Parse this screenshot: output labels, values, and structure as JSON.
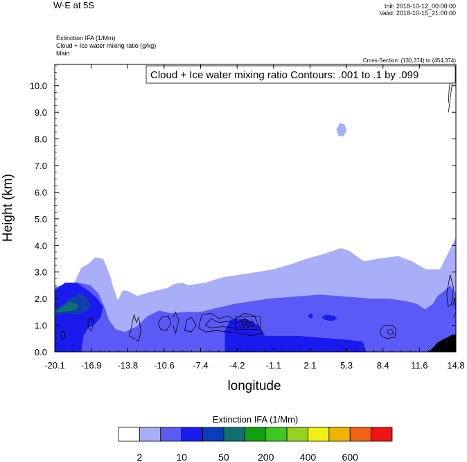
{
  "header": {
    "title": "W-E at 5S",
    "init": "Init: 2018-10-12_00:00:00",
    "valid": "Valid: 2018-10-15_21:00:00",
    "field_lines": [
      "Extinction IFA   (1/Mm)",
      "Cloud + Ice water mixing ratio   (g/kg)",
      "Main"
    ],
    "cross_section": "Cross-Section: (130,374) to (454,374)"
  },
  "contour_label_box": "Cloud + Ice water mixing ratio Contours: .001 to .1 by .099",
  "contour_value_label": ".001",
  "colors": {
    "shade_2": "#a8aef8",
    "shade_10": "#5a5af6",
    "shade_50": "#1a1aee",
    "shade_100": "#1040b0",
    "shade_200": "#107070",
    "terrain": "#000000"
  },
  "chart_data": {
    "type": "heatmap",
    "title": "W-E at 5S",
    "xlabel": "longitude",
    "ylabel": "Height (km)",
    "x_ticks": [
      "-20.1",
      "-16.9",
      "-13.8",
      "-10.6",
      "-7.4",
      "-4.2",
      "-1.1",
      "2.1",
      "5.3",
      "8.4",
      "11.6",
      "14.8"
    ],
    "y_ticks": [
      "0.0",
      "1.0",
      "2.0",
      "3.0",
      "4.0",
      "5.0",
      "6.0",
      "7.0",
      "8.0",
      "9.0",
      "10.0"
    ],
    "xlim": [
      -20.1,
      14.8
    ],
    "ylim": [
      0.0,
      10.8
    ],
    "colorbar": {
      "title": "Extinction IFA  (1/Mm)",
      "labels": [
        "2",
        "10",
        "50",
        "200",
        "400",
        "600"
      ],
      "colors": [
        "#ffffff",
        "#a8aef8",
        "#5a5af6",
        "#1a1aee",
        "#0c3cbc",
        "#107070",
        "#10a010",
        "#3cc81e",
        "#96d21e",
        "#f0f014",
        "#f0b400",
        "#f06414",
        "#f01414"
      ]
    },
    "regions": [
      {
        "name": "shade_2",
        "pts": [
          [
            -20.1,
            0
          ],
          [
            14.8,
            0
          ],
          [
            14.8,
            4.3
          ],
          [
            14.0,
            3.6
          ],
          [
            13.4,
            3.1
          ],
          [
            12.2,
            3.1
          ],
          [
            11.0,
            3.4
          ],
          [
            9.8,
            3.6
          ],
          [
            8.0,
            3.5
          ],
          [
            6.8,
            3.4
          ],
          [
            5.5,
            3.8
          ],
          [
            4.8,
            3.9
          ],
          [
            3.5,
            3.7
          ],
          [
            1.8,
            3.5
          ],
          [
            0.5,
            3.3
          ],
          [
            -1.1,
            3.1
          ],
          [
            -2.5,
            3.0
          ],
          [
            -4.0,
            2.9
          ],
          [
            -5.5,
            2.8
          ],
          [
            -7.0,
            2.6
          ],
          [
            -8.5,
            2.5
          ],
          [
            -9.0,
            2.6
          ],
          [
            -9.7,
            2.55
          ],
          [
            -10.3,
            2.4
          ],
          [
            -11.3,
            2.3
          ],
          [
            -12.2,
            2.2
          ],
          [
            -12.9,
            2.1
          ],
          [
            -13.8,
            2.3
          ],
          [
            -14.2,
            2.3
          ],
          [
            -14.6,
            1.95
          ],
          [
            -15.0,
            2.4
          ],
          [
            -15.3,
            2.9
          ],
          [
            -15.9,
            3.5
          ],
          [
            -16.6,
            3.55
          ],
          [
            -17.2,
            3.3
          ],
          [
            -17.8,
            3.15
          ],
          [
            -18.5,
            2.5
          ],
          [
            -19.5,
            2.4
          ],
          [
            -20.1,
            2.5
          ]
        ]
      },
      {
        "name": "shade_2",
        "pts": [
          [
            4.4,
            8.35
          ],
          [
            4.7,
            8.6
          ],
          [
            5.1,
            8.55
          ],
          [
            5.3,
            8.3
          ],
          [
            5.0,
            8.1
          ],
          [
            4.6,
            8.1
          ]
        ]
      },
      {
        "name": "shade_10",
        "pts": [
          [
            -20.1,
            0
          ],
          [
            14.8,
            0
          ],
          [
            14.8,
            2.2
          ],
          [
            14.3,
            2.5
          ],
          [
            13.8,
            2.3
          ],
          [
            13.2,
            2.1
          ],
          [
            12.8,
            1.8
          ],
          [
            12.1,
            1.6
          ],
          [
            11.4,
            1.8
          ],
          [
            10.5,
            1.9
          ],
          [
            9.0,
            2.0
          ],
          [
            7.5,
            2.0
          ],
          [
            6.0,
            2.05
          ],
          [
            4.5,
            2.1
          ],
          [
            3.0,
            2.15
          ],
          [
            1.5,
            2.1
          ],
          [
            0.0,
            2.05
          ],
          [
            -1.5,
            2.0
          ],
          [
            -3.0,
            1.9
          ],
          [
            -4.5,
            1.8
          ],
          [
            -6.0,
            1.65
          ],
          [
            -7.4,
            1.5
          ],
          [
            -8.8,
            1.5
          ],
          [
            -10.0,
            1.45
          ],
          [
            -11.0,
            1.55
          ],
          [
            -12.0,
            1.35
          ],
          [
            -13.0,
            0.95
          ],
          [
            -14.0,
            0.75
          ],
          [
            -14.8,
            0.85
          ],
          [
            -15.4,
            1.2
          ],
          [
            -15.7,
            1.6
          ],
          [
            -16.3,
            2.2
          ],
          [
            -17.0,
            2.5
          ],
          [
            -18.0,
            2.6
          ],
          [
            -19.0,
            2.6
          ],
          [
            -20.1,
            2.4
          ]
        ]
      },
      {
        "name": "shade_50",
        "pts": [
          [
            -20.1,
            0
          ],
          [
            -17.8,
            0
          ],
          [
            -17.6,
            0.6
          ],
          [
            -17.2,
            0.9
          ],
          [
            -16.6,
            1.05
          ],
          [
            -16.1,
            1.3
          ],
          [
            -15.9,
            1.7
          ],
          [
            -16.4,
            2.0
          ],
          [
            -17.2,
            2.3
          ],
          [
            -18.2,
            2.6
          ],
          [
            -19.2,
            2.6
          ],
          [
            -20.1,
            2.3
          ]
        ]
      },
      {
        "name": "shade_50",
        "pts": [
          [
            -5.3,
            0
          ],
          [
            -5.3,
            0.8
          ],
          [
            -4.8,
            1.2
          ],
          [
            -3.5,
            1.25
          ],
          [
            -2.4,
            1.0
          ],
          [
            -2.0,
            0.75
          ],
          [
            -1.8,
            0.6
          ],
          [
            -0.5,
            0.6
          ],
          [
            1.0,
            0.6
          ],
          [
            2.5,
            0.55
          ],
          [
            4.0,
            0.5
          ],
          [
            5.5,
            0.45
          ],
          [
            6.7,
            0.38
          ],
          [
            7.0,
            0
          ]
        ]
      },
      {
        "name": "shade_50",
        "pts": [
          [
            1.9,
            1.35
          ],
          [
            2.2,
            1.45
          ],
          [
            2.4,
            1.35
          ],
          [
            2.2,
            1.25
          ]
        ]
      },
      {
        "name": "shade_50",
        "pts": [
          [
            3.1,
            1.3
          ],
          [
            3.5,
            1.4
          ],
          [
            4.2,
            1.35
          ],
          [
            4.5,
            1.25
          ],
          [
            4.0,
            1.15
          ],
          [
            3.4,
            1.2
          ]
        ]
      },
      {
        "name": "shade_100",
        "pts": [
          [
            -20.1,
            1.55
          ],
          [
            -19.5,
            1.75
          ],
          [
            -18.6,
            2.05
          ],
          [
            -17.8,
            2.2
          ],
          [
            -17.2,
            2.0
          ],
          [
            -17.0,
            1.7
          ],
          [
            -17.4,
            1.5
          ],
          [
            -18.2,
            1.4
          ],
          [
            -19.2,
            1.45
          ],
          [
            -20.1,
            1.4
          ]
        ]
      },
      {
        "name": "shade_200",
        "pts": [
          [
            -20.1,
            1.5
          ],
          [
            -19.6,
            1.65
          ],
          [
            -18.8,
            1.9
          ],
          [
            -18.2,
            1.8
          ],
          [
            -18.0,
            1.65
          ],
          [
            -18.6,
            1.55
          ],
          [
            -19.4,
            1.5
          ]
        ]
      },
      {
        "name": "terrain",
        "pts": [
          [
            12.4,
            0
          ],
          [
            12.8,
            0.15
          ],
          [
            13.2,
            0.35
          ],
          [
            13.6,
            0.45
          ],
          [
            14.1,
            0.55
          ],
          [
            14.5,
            0.65
          ],
          [
            14.8,
            0.65
          ],
          [
            14.8,
            0
          ]
        ]
      }
    ],
    "contours": [
      [
        [
          14.15,
          9.35
        ],
        [
          14.2,
          9.8
        ],
        [
          14.3,
          10.2
        ],
        [
          14.5,
          10.45
        ],
        [
          14.45,
          10.0
        ],
        [
          14.3,
          9.5
        ],
        [
          14.15,
          9.0
        ]
      ],
      [
        [
          -17.2,
          1.2
        ],
        [
          -16.9,
          1.3
        ],
        [
          -16.7,
          1.1
        ],
        [
          -16.9,
          0.8
        ],
        [
          -17.2,
          0.9
        ],
        [
          -17.2,
          1.2
        ]
      ],
      [
        [
          -19.6,
          0.7
        ],
        [
          -19.3,
          0.8
        ],
        [
          -19.2,
          0.55
        ],
        [
          -19.5,
          0.45
        ],
        [
          -19.6,
          0.7
        ]
      ],
      [
        [
          -13.6,
          0.6
        ],
        [
          -13.4,
          1.0
        ],
        [
          -13.2,
          1.4
        ],
        [
          -13.0,
          1.1
        ],
        [
          -12.8,
          1.3
        ],
        [
          -12.6,
          0.8
        ],
        [
          -12.8,
          0.4
        ],
        [
          -13.2,
          0.5
        ],
        [
          -13.6,
          0.6
        ]
      ],
      [
        [
          -11.1,
          1.1
        ],
        [
          -10.8,
          1.3
        ],
        [
          -10.2,
          1.35
        ],
        [
          -10.0,
          1.05
        ],
        [
          -10.4,
          0.8
        ],
        [
          -10.9,
          0.85
        ],
        [
          -11.1,
          1.1
        ]
      ],
      [
        [
          -9.8,
          1.3
        ],
        [
          -9.6,
          1.5
        ],
        [
          -9.3,
          1.2
        ],
        [
          -9.6,
          0.7
        ],
        [
          -9.8,
          1.0
        ]
      ],
      [
        [
          -8.8,
          0.8
        ],
        [
          -8.6,
          1.2
        ],
        [
          -8.2,
          1.3
        ],
        [
          -7.8,
          1.0
        ],
        [
          -8.2,
          0.75
        ],
        [
          -8.8,
          0.8
        ]
      ],
      [
        [
          -7.6,
          0.9
        ],
        [
          -7.3,
          1.4
        ],
        [
          -6.5,
          1.45
        ],
        [
          -5.8,
          1.25
        ],
        [
          -5.0,
          1.35
        ],
        [
          -4.5,
          1.2
        ],
        [
          -3.6,
          1.45
        ],
        [
          -2.7,
          1.35
        ],
        [
          -2.4,
          1.0
        ],
        [
          -2.0,
          0.7
        ],
        [
          -3.0,
          0.6
        ],
        [
          -4.0,
          0.7
        ],
        [
          -5.0,
          0.75
        ],
        [
          -6.0,
          0.8
        ],
        [
          -7.0,
          0.75
        ],
        [
          -7.6,
          0.9
        ]
      ],
      [
        [
          -7.0,
          1.0
        ],
        [
          -6.5,
          1.25
        ],
        [
          -5.8,
          1.1
        ],
        [
          -5.0,
          1.15
        ],
        [
          -4.4,
          1.05
        ],
        [
          -3.6,
          1.25
        ],
        [
          -3.0,
          1.1
        ],
        [
          -3.3,
          0.9
        ],
        [
          -4.5,
          0.9
        ],
        [
          -5.5,
          0.95
        ],
        [
          -6.5,
          0.9
        ],
        [
          -7.0,
          1.0
        ]
      ],
      [
        [
          8.2,
          0.8
        ],
        [
          8.5,
          1.0
        ],
        [
          9.3,
          1.0
        ],
        [
          9.6,
          0.85
        ],
        [
          9.5,
          0.55
        ],
        [
          8.8,
          0.5
        ],
        [
          8.3,
          0.6
        ],
        [
          8.2,
          0.8
        ]
      ],
      [
        [
          8.8,
          0.8
        ],
        [
          9.2,
          0.85
        ],
        [
          9.4,
          0.7
        ],
        [
          9.0,
          0.65
        ],
        [
          8.8,
          0.8
        ]
      ],
      [
        [
          14.0,
          2.2
        ],
        [
          14.3,
          2.9
        ],
        [
          14.6,
          2.4
        ],
        [
          14.4,
          1.8
        ],
        [
          14.1,
          1.7
        ],
        [
          14.0,
          2.2
        ]
      ],
      [
        [
          14.5,
          1.7
        ],
        [
          14.7,
          2.0
        ],
        [
          14.8,
          1.5
        ],
        [
          14.6,
          1.3
        ]
      ]
    ]
  }
}
